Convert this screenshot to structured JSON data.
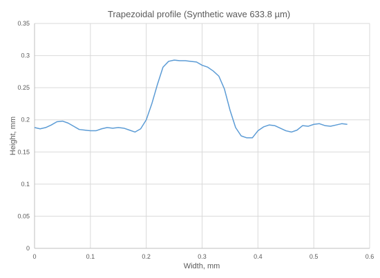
{
  "chart_data": {
    "type": "line",
    "title": "Trapezoidal profile (Synthetic wave 633.8 µm)",
    "xlabel": "Width, mm",
    "ylabel": "Height, mm",
    "xlim": [
      0,
      0.6
    ],
    "ylim": [
      0,
      0.35
    ],
    "xticks": [
      0,
      0.1,
      0.2,
      0.3,
      0.4,
      0.5,
      0.6
    ],
    "xtick_labels": [
      "0",
      "0.1",
      "0.2",
      "0.3",
      "0.4",
      "0.5",
      "0.6"
    ],
    "yticks": [
      0,
      0.05,
      0.1,
      0.15,
      0.2,
      0.25,
      0.3,
      0.35
    ],
    "ytick_labels": [
      "0",
      "0.05",
      "0.1",
      "0.15",
      "0.2",
      "0.25",
      "0.3",
      "0.35"
    ],
    "grid": true,
    "legend": "none",
    "series": [
      {
        "color": "#5b9bd5",
        "x": [
          0,
          0.01,
          0.02,
          0.03,
          0.04,
          0.05,
          0.06,
          0.07,
          0.08,
          0.09,
          0.1,
          0.11,
          0.12,
          0.13,
          0.14,
          0.15,
          0.16,
          0.17,
          0.18,
          0.19,
          0.2,
          0.21,
          0.22,
          0.23,
          0.24,
          0.25,
          0.26,
          0.27,
          0.28,
          0.29,
          0.3,
          0.31,
          0.32,
          0.33,
          0.34,
          0.35,
          0.36,
          0.37,
          0.38,
          0.39,
          0.4,
          0.41,
          0.42,
          0.43,
          0.44,
          0.45,
          0.46,
          0.47,
          0.48,
          0.49,
          0.5,
          0.51,
          0.52,
          0.53,
          0.54,
          0.55,
          0.56
        ],
        "y": [
          0.188,
          0.186,
          0.188,
          0.192,
          0.197,
          0.198,
          0.195,
          0.19,
          0.185,
          0.184,
          0.183,
          0.183,
          0.186,
          0.188,
          0.187,
          0.188,
          0.187,
          0.184,
          0.181,
          0.186,
          0.2,
          0.225,
          0.255,
          0.282,
          0.291,
          0.293,
          0.292,
          0.292,
          0.291,
          0.29,
          0.285,
          0.282,
          0.276,
          0.268,
          0.248,
          0.215,
          0.188,
          0.175,
          0.172,
          0.172,
          0.183,
          0.189,
          0.192,
          0.191,
          0.187,
          0.183,
          0.181,
          0.184,
          0.191,
          0.19,
          0.193,
          0.194,
          0.191,
          0.19,
          0.192,
          0.194,
          0.193
        ]
      }
    ]
  }
}
